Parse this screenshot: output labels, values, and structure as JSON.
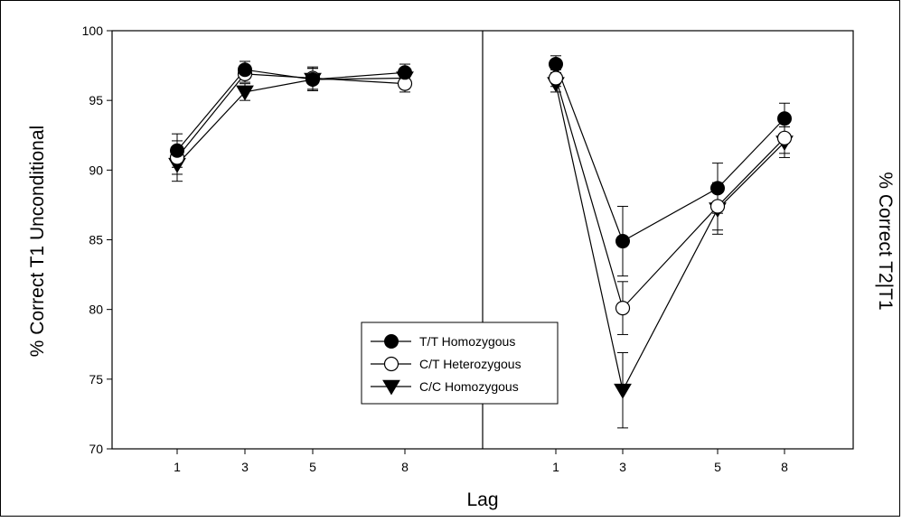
{
  "chart_data": {
    "type": "line",
    "xlabel": "Lag",
    "ylabel_left": "% Correct T1 Unconditional",
    "ylabel_right": "% Correct T2|T1",
    "ylim": [
      70,
      100
    ],
    "yticks": [
      70,
      75,
      80,
      85,
      90,
      95,
      100
    ],
    "grid": false,
    "legend_position": "bottom-center of left panel",
    "panels": [
      {
        "name": "T1 Unconditional",
        "categories": [
          "1",
          "3",
          "5",
          "8"
        ],
        "series": [
          {
            "name": "T/T Homozygous",
            "marker": "filled-circle",
            "values": [
              91.4,
              97.2,
              96.5,
              97.0
            ],
            "error": [
              1.2,
              0.6,
              0.8,
              0.6
            ]
          },
          {
            "name": "C/T Heterozygous",
            "marker": "open-circle",
            "values": [
              90.9,
              96.9,
              96.6,
              96.2
            ],
            "error": [
              1.2,
              0.6,
              0.8,
              0.6
            ]
          },
          {
            "name": "C/C Homozygous",
            "marker": "filled-triangle-down",
            "values": [
              90.4,
              95.6,
              96.5,
              96.6
            ],
            "error": [
              1.2,
              0.6,
              0.8,
              0.6
            ]
          }
        ]
      },
      {
        "name": "T2|T1",
        "categories": [
          "1",
          "3",
          "5",
          "8"
        ],
        "series": [
          {
            "name": "T/T Homozygous",
            "marker": "filled-circle",
            "values": [
              97.6,
              84.9,
              88.7,
              93.7
            ],
            "error": [
              0.6,
              2.5,
              1.8,
              1.1
            ]
          },
          {
            "name": "C/T Heterozygous",
            "marker": "open-circle",
            "values": [
              96.6,
              80.1,
              87.4,
              92.3
            ],
            "error": [
              0.6,
              1.9,
              1.7,
              1.1
            ]
          },
          {
            "name": "C/C Homozygous",
            "marker": "filled-triangle-down",
            "values": [
              96.2,
              74.2,
              87.2,
              92.0
            ],
            "error": [
              0.6,
              2.7,
              1.8,
              1.1
            ]
          }
        ]
      }
    ]
  }
}
